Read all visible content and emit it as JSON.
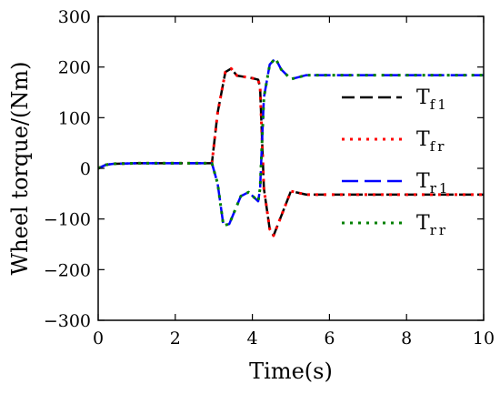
{
  "chart_data": {
    "type": "line",
    "xlabel": "Time(s)",
    "ylabel": "Wheel torque/(Nm)",
    "xlim": [
      0,
      10
    ],
    "ylim": [
      -300,
      300
    ],
    "xticks": [
      0,
      2,
      4,
      6,
      8,
      10
    ],
    "yticks": [
      -300,
      -200,
      -100,
      0,
      100,
      200,
      300
    ],
    "grid": false,
    "legend": "right",
    "series": [
      {
        "name": "Tf1",
        "name_main": "T",
        "name_sub": "f1",
        "color": "#000000",
        "dash": "14,6",
        "width": 2.5,
        "x": [
          0,
          0.2,
          0.4,
          1,
          2,
          2.95,
          3.1,
          3.3,
          3.45,
          3.6,
          4.0,
          4.15,
          4.2,
          4.3,
          4.45,
          4.55,
          5.0,
          5.4,
          10
        ],
        "y": [
          0,
          7,
          9,
          10,
          10,
          10,
          110,
          190,
          197,
          183,
          178,
          175,
          160,
          -40,
          -120,
          -133,
          -45,
          -52,
          -52
        ]
      },
      {
        "name": "Tfr",
        "name_main": "T",
        "name_sub": "fr",
        "color": "#ff0000",
        "dash": "3,6",
        "width": 3,
        "x": [
          0,
          0.2,
          0.4,
          1,
          2,
          2.95,
          3.1,
          3.3,
          3.45,
          3.6,
          4.0,
          4.15,
          4.2,
          4.3,
          4.45,
          4.55,
          5.0,
          5.4,
          10
        ],
        "y": [
          0,
          7,
          9,
          10,
          10,
          10,
          110,
          190,
          197,
          183,
          178,
          175,
          160,
          -40,
          -120,
          -133,
          -45,
          -52,
          -52
        ]
      },
      {
        "name": "Tr1",
        "name_main": "T",
        "name_sub": "r1",
        "color": "#0000ff",
        "dash": "18,7",
        "width": 2.5,
        "x": [
          0,
          0.2,
          0.4,
          1,
          2,
          2.95,
          3.1,
          3.25,
          3.4,
          3.7,
          3.9,
          4.15,
          4.2,
          4.3,
          4.45,
          4.6,
          4.75,
          5.0,
          5.4,
          10
        ],
        "y": [
          0,
          7,
          9,
          10,
          10,
          10,
          -30,
          -113,
          -110,
          -55,
          -47,
          -65,
          -40,
          140,
          205,
          217,
          195,
          176,
          184,
          184
        ]
      },
      {
        "name": "Trr",
        "name_main": "T",
        "name_sub": "rr",
        "color": "#008000",
        "dash": "3,6",
        "width": 3,
        "x": [
          0,
          0.2,
          0.4,
          1,
          2,
          2.95,
          3.1,
          3.25,
          3.4,
          3.7,
          3.9,
          4.15,
          4.2,
          4.3,
          4.45,
          4.6,
          4.75,
          5.0,
          5.4,
          10
        ],
        "y": [
          0,
          7,
          9,
          10,
          10,
          10,
          -30,
          -113,
          -110,
          -55,
          -47,
          -65,
          -40,
          140,
          205,
          217,
          195,
          176,
          184,
          184
        ]
      }
    ]
  }
}
